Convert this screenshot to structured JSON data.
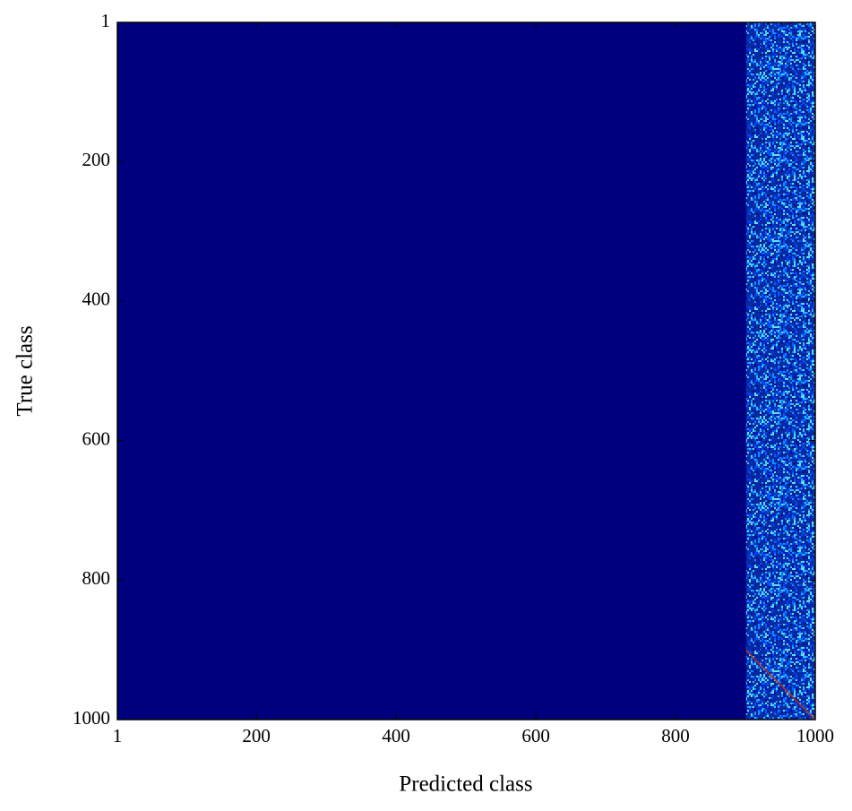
{
  "chart_data": {
    "type": "heatmap",
    "xlabel": "Predicted class",
    "ylabel": "True class",
    "xlim": [
      1,
      1000
    ],
    "ylim": [
      1,
      1000
    ],
    "y_inverted": true,
    "xticks": [
      1,
      200,
      400,
      600,
      800,
      1000
    ],
    "yticks": [
      1,
      200,
      400,
      600,
      800,
      1000
    ],
    "background_color": "#00007f",
    "noise_band": {
      "x": [
        901,
        1000
      ],
      "y": [
        1,
        1000
      ]
    },
    "diagonal": {
      "x": [
        901,
        1000
      ],
      "y": [
        901,
        1000
      ],
      "color": "#c03018"
    }
  }
}
